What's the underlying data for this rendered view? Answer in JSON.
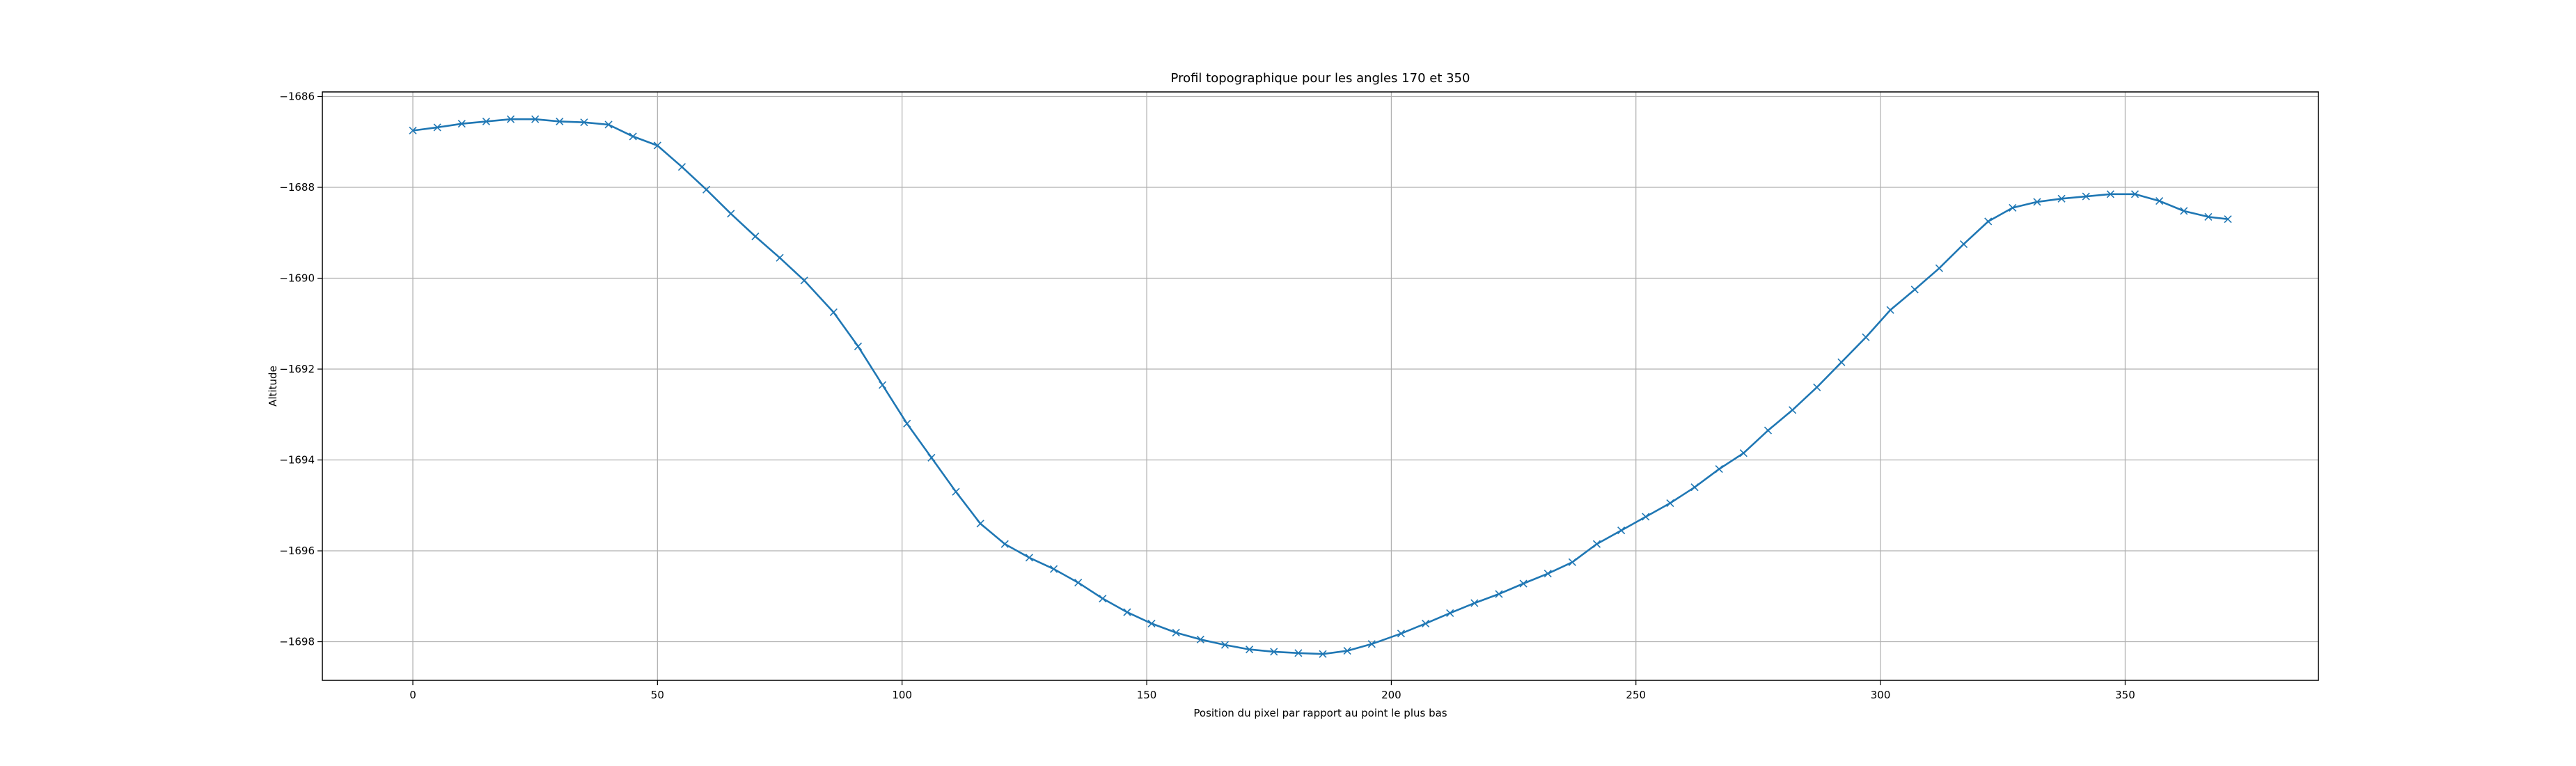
{
  "chart_data": {
    "type": "line",
    "title": "Profil topographique pour les angles 170 et 350",
    "xlabel": "Position du pixel par rapport au point le plus bas",
    "ylabel": "Altitude",
    "xlim": [
      -18.5,
      389.5
    ],
    "ylim": [
      -1698.85,
      -1685.9
    ],
    "x_ticks": [
      0,
      50,
      100,
      150,
      200,
      250,
      300,
      350
    ],
    "y_ticks": [
      -1686,
      -1688,
      -1690,
      -1692,
      -1694,
      -1696,
      -1698
    ],
    "x_tick_labels": [
      "0",
      "50",
      "100",
      "150",
      "200",
      "250",
      "300",
      "350"
    ],
    "y_tick_labels": [
      "−1686",
      "−1688",
      "−1690",
      "−1692",
      "−1694",
      "−1696",
      "−1698"
    ],
    "grid": true,
    "marker": "x",
    "color": "#1f77b4",
    "series": [
      {
        "x": [
          0,
          5,
          10,
          15,
          20,
          25,
          30,
          35,
          40,
          45,
          50,
          55,
          60,
          65,
          70,
          75,
          80,
          86,
          91,
          96,
          101,
          106,
          111,
          116,
          121,
          126,
          131,
          136,
          141,
          146,
          151,
          156,
          161,
          166,
          171,
          176,
          181,
          186,
          191,
          196,
          202,
          207,
          212,
          217,
          222,
          227,
          232,
          237,
          242,
          247,
          252,
          257,
          262,
          267,
          272,
          277,
          282,
          287,
          292,
          297,
          302,
          307,
          312,
          317,
          322,
          327,
          332,
          337,
          342,
          347,
          352,
          357,
          362,
          367,
          371
        ],
        "y": [
          -1686.75,
          -1686.68,
          -1686.6,
          -1686.55,
          -1686.5,
          -1686.5,
          -1686.55,
          -1686.57,
          -1686.62,
          -1686.88,
          -1687.08,
          -1687.55,
          -1688.05,
          -1688.58,
          -1689.08,
          -1689.55,
          -1690.05,
          -1690.75,
          -1691.5,
          -1692.35,
          -1693.2,
          -1693.95,
          -1694.7,
          -1695.4,
          -1695.85,
          -1696.15,
          -1696.4,
          -1696.7,
          -1697.05,
          -1697.35,
          -1697.6,
          -1697.8,
          -1697.95,
          -1698.07,
          -1698.17,
          -1698.22,
          -1698.25,
          -1698.27,
          -1698.2,
          -1698.05,
          -1697.82,
          -1697.6,
          -1697.37,
          -1697.15,
          -1696.95,
          -1696.72,
          -1696.5,
          -1696.25,
          -1695.85,
          -1695.55,
          -1695.25,
          -1694.95,
          -1694.6,
          -1694.2,
          -1693.85,
          -1693.35,
          -1692.9,
          -1692.4,
          -1691.85,
          -1691.3,
          -1690.7,
          -1690.25,
          -1689.78,
          -1689.25,
          -1688.75,
          -1688.45,
          -1688.32,
          -1688.25,
          -1688.2,
          -1688.15,
          -1688.15,
          -1688.3,
          -1688.52,
          -1688.65,
          -1688.7
        ]
      }
    ]
  }
}
